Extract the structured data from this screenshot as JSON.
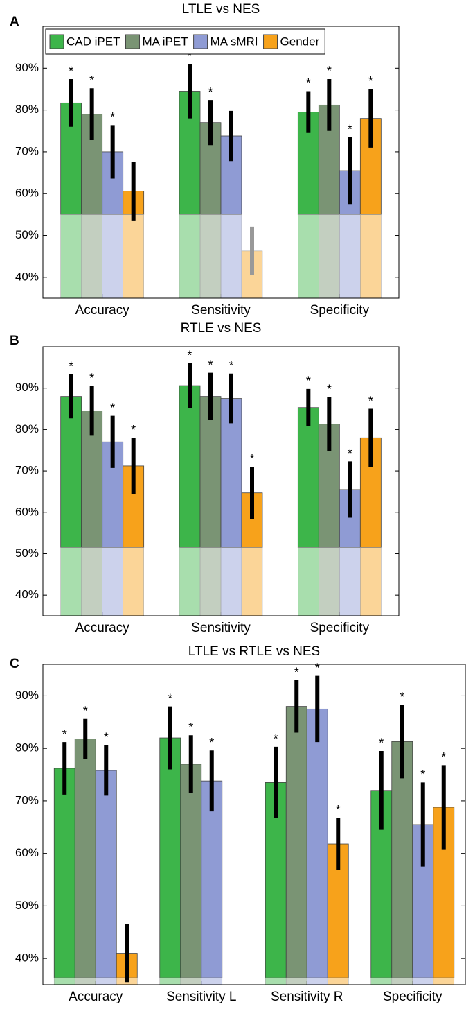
{
  "chart_data": [
    {
      "type": "bar",
      "panel_label": "A",
      "title": "LTLE vs NES",
      "categories": [
        "Accuracy",
        "Sensitivity",
        "Specificity"
      ],
      "series": [
        {
          "name": "CAD iPET",
          "color": "#3db54a",
          "values": [
            81.7,
            84.5,
            79.5
          ],
          "errors": [
            5.7,
            6.5,
            5.0
          ],
          "significant": [
            true,
            true,
            true
          ]
        },
        {
          "name": "MA iPET",
          "color": "#7a9474",
          "values": [
            79,
            77,
            81.2
          ],
          "errors": [
            6.2,
            5.4,
            6.2
          ],
          "significant": [
            true,
            true,
            true
          ]
        },
        {
          "name": "MA sMRI",
          "color": "#8f9bd4",
          "values": [
            70,
            73.8,
            65.5
          ],
          "errors": [
            6.4,
            6.0,
            8.0
          ],
          "significant": [
            true,
            false,
            true
          ]
        },
        {
          "name": "Gender",
          "color": "#f7a21b",
          "values": [
            60.6,
            46.3,
            78
          ],
          "errors": [
            7.0,
            5.8,
            7.0
          ],
          "significant": [
            false,
            false,
            true
          ]
        }
      ],
      "sig_label": "*",
      "chance_level": 55,
      "legend": "top",
      "ylim": [
        35,
        100
      ],
      "yticks": [
        {
          "value": 40,
          "label": "40%"
        },
        {
          "value": 50,
          "label": "50%"
        },
        {
          "value": 60,
          "label": "60%"
        },
        {
          "value": 70,
          "label": "70%"
        },
        {
          "value": 80,
          "label": "80%"
        },
        {
          "value": 90,
          "label": "90%"
        }
      ]
    },
    {
      "type": "bar",
      "panel_label": "B",
      "title": "RTLE vs NES",
      "categories": [
        "Accuracy",
        "Sensitivity",
        "Specificity"
      ],
      "series": [
        {
          "name": "CAD iPET",
          "color": "#3db54a",
          "values": [
            88,
            90.6,
            85.3
          ],
          "errors": [
            5.3,
            5.4,
            4.5
          ],
          "significant": [
            true,
            true,
            true
          ]
        },
        {
          "name": "MA iPET",
          "color": "#7a9474",
          "values": [
            84.5,
            88,
            81.3
          ],
          "errors": [
            6.0,
            5.7,
            6.5
          ],
          "significant": [
            true,
            true,
            true
          ]
        },
        {
          "name": "MA sMRI",
          "color": "#8f9bd4",
          "values": [
            77,
            87.5,
            65.5
          ],
          "errors": [
            6.3,
            6.0,
            6.8
          ],
          "significant": [
            true,
            true,
            true
          ]
        },
        {
          "name": "Gender",
          "color": "#f7a21b",
          "values": [
            71.2,
            64.7,
            78
          ],
          "errors": [
            6.8,
            6.3,
            7.0
          ],
          "significant": [
            true,
            true,
            true
          ]
        }
      ],
      "sig_label": "*",
      "chance_level": 51.5,
      "ylim": [
        35,
        100
      ],
      "yticks": [
        {
          "value": 40,
          "label": "40%"
        },
        {
          "value": 50,
          "label": "50%"
        },
        {
          "value": 60,
          "label": "60%"
        },
        {
          "value": 70,
          "label": "70%"
        },
        {
          "value": 80,
          "label": "80%"
        },
        {
          "value": 90,
          "label": "90%"
        }
      ]
    },
    {
      "type": "bar",
      "panel_label": "C",
      "title": "LTLE vs RTLE vs NES",
      "categories": [
        "Accuracy",
        "Sensitivity L",
        "Sensitivity R",
        "Specificity"
      ],
      "series": [
        {
          "name": "CAD iPET",
          "color": "#3db54a",
          "values": [
            76.2,
            82,
            73.5,
            72
          ],
          "errors": [
            5.0,
            6.0,
            6.8,
            7.5
          ],
          "significant": [
            true,
            true,
            true,
            true
          ]
        },
        {
          "name": "MA iPET",
          "color": "#7a9474",
          "values": [
            81.8,
            77,
            88,
            81.3
          ],
          "errors": [
            3.8,
            5.5,
            5.0,
            7.0
          ],
          "significant": [
            true,
            true,
            true,
            true
          ]
        },
        {
          "name": "MA sMRI",
          "color": "#8f9bd4",
          "values": [
            75.8,
            73.8,
            87.5,
            65.5
          ],
          "errors": [
            4.8,
            5.8,
            6.3,
            8.0
          ],
          "significant": [
            true,
            true,
            true,
            true
          ]
        },
        {
          "name": "Gender",
          "color": "#f7a21b",
          "values": [
            41,
            null,
            61.8,
            68.8
          ],
          "errors": [
            5.5,
            null,
            5.0,
            8.0
          ],
          "significant": [
            false,
            false,
            true,
            true
          ]
        }
      ],
      "sig_label": "*",
      "chance_level": 36.3,
      "ylim": [
        35,
        96
      ],
      "yticks": [
        {
          "value": 40,
          "label": "40%"
        },
        {
          "value": 50,
          "label": "50%"
        },
        {
          "value": 60,
          "label": "60%"
        },
        {
          "value": 70,
          "label": "70%"
        },
        {
          "value": 80,
          "label": "80%"
        },
        {
          "value": 90,
          "label": "90%"
        }
      ]
    }
  ]
}
